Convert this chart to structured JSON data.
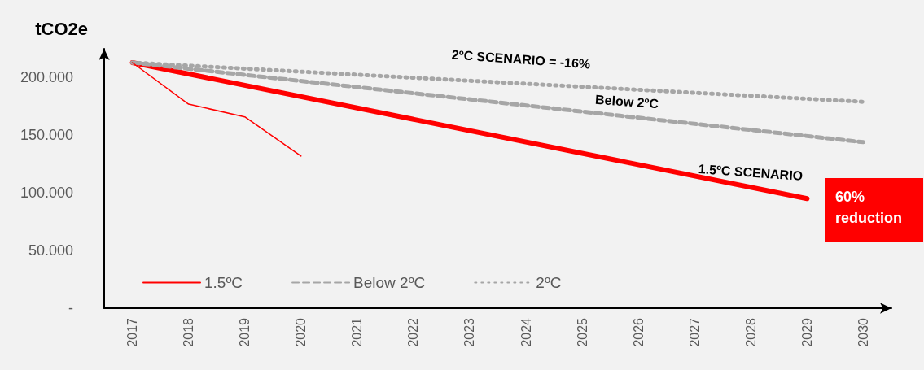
{
  "chart_data": {
    "type": "line",
    "ylabel": "tCO2e",
    "categories": [
      "2017",
      "2018",
      "2019",
      "2020",
      "2021",
      "2022",
      "2023",
      "2024",
      "2025",
      "2026",
      "2027",
      "2028",
      "2029",
      "2030"
    ],
    "series": [
      {
        "name": "1.5ºC",
        "color": "#ff0000",
        "line_style": "solid",
        "values": [
          213,
          null,
          null,
          null,
          null,
          null,
          null,
          null,
          null,
          null,
          null,
          null,
          95,
          null
        ]
      },
      {
        "name": "Below 2ºC",
        "color": "#a6a6a6",
        "line_style": "dashed",
        "values": [
          213,
          null,
          null,
          null,
          null,
          null,
          null,
          null,
          null,
          null,
          null,
          null,
          null,
          144
        ]
      },
      {
        "name": "2ºC",
        "color": "#a6a6a6",
        "line_style": "dotted",
        "values": [
          213,
          null,
          null,
          null,
          null,
          null,
          null,
          null,
          null,
          null,
          null,
          null,
          null,
          179
        ]
      },
      {
        "color": "#ff0000",
        "line_style": "solid",
        "values": [
          213,
          177,
          166,
          132,
          null,
          null,
          null,
          null,
          null,
          null,
          null,
          null,
          null,
          null
        ]
      }
    ],
    "ylim": [
      0,
      225
    ],
    "yticks": [
      {
        "value": 0,
        "label": "-"
      },
      {
        "value": 50,
        "label": "50.000"
      },
      {
        "value": 100,
        "label": "100.000"
      },
      {
        "value": 150,
        "label": "150.000"
      },
      {
        "value": 200,
        "label": "200.000"
      }
    ],
    "grid": false,
    "legend": "bottom",
    "marker": "none",
    "annotations": [
      "2ºC SCENARIO = -16%",
      "Below 2ºC",
      "1.5ºC SCENARIO",
      "60% reduction"
    ]
  }
}
